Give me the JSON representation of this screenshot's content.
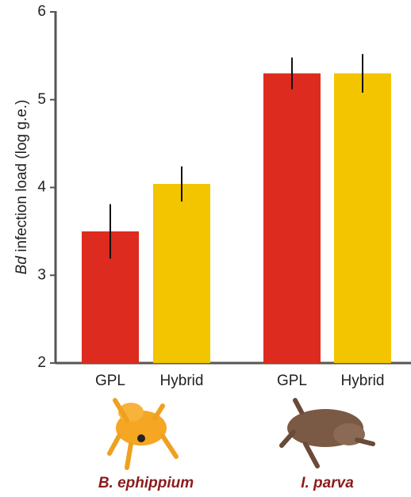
{
  "chart_data": {
    "type": "bar",
    "ylabel": [
      "Bd",
      "infection load (log g.e.)"
    ],
    "categories": [
      "GPL",
      "Hybrid",
      "GPL",
      "Hybrid"
    ],
    "values": [
      3.5,
      4.04,
      5.3,
      5.3
    ],
    "errors": [
      0.31,
      0.2,
      0.18,
      0.22
    ],
    "colors": [
      "#de2b1f",
      "#f2c500",
      "#de2b1f",
      "#f2c500"
    ],
    "groups": [
      "B. ephippium",
      "I. parva"
    ],
    "ylim": [
      2,
      6
    ],
    "yticks": [
      2,
      3,
      4,
      5,
      6
    ]
  }
}
